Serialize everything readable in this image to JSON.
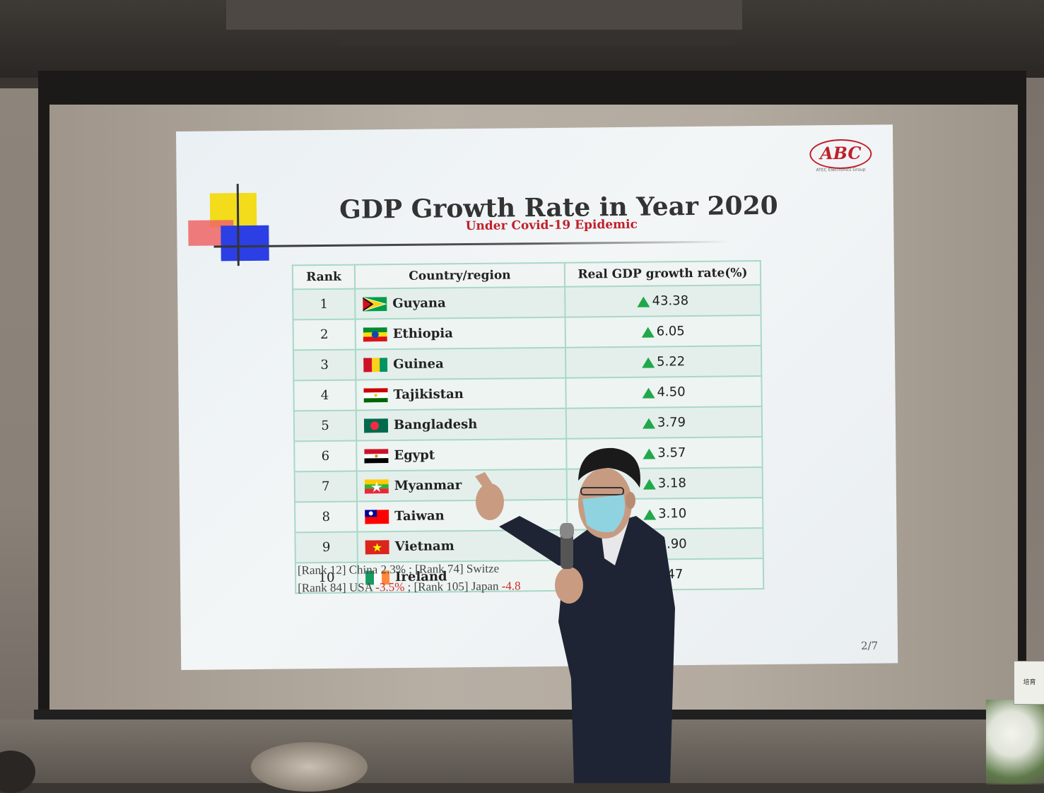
{
  "slide": {
    "title": "GDP Growth Rate in Year 2020",
    "subtitle": "Under Covid-19 Epidemic",
    "logo_text": "ABC",
    "logo_tagline": "ATEC Electronics Group",
    "page_number": "2/7"
  },
  "table": {
    "headers": [
      "Rank",
      "Country/region",
      "Real GDP growth rate(%)"
    ],
    "rows": [
      {
        "rank": "1",
        "country": "Guyana",
        "rate": "43.38"
      },
      {
        "rank": "2",
        "country": "Ethiopia",
        "rate": "6.05"
      },
      {
        "rank": "3",
        "country": "Guinea",
        "rate": "5.22"
      },
      {
        "rank": "4",
        "country": "Tajikistan",
        "rate": "4.50"
      },
      {
        "rank": "5",
        "country": "Bangladesh",
        "rate": "3.79"
      },
      {
        "rank": "6",
        "country": "Egypt",
        "rate": "3.57"
      },
      {
        "rank": "7",
        "country": "Myanmar",
        "rate": "3.18"
      },
      {
        "rank": "8",
        "country": "Taiwan",
        "rate": "3.10"
      },
      {
        "rank": "9",
        "country": "Vietnam",
        "rate": "2.90"
      },
      {
        "rank": "10",
        "country": "Ireland",
        "rate": ".47"
      }
    ]
  },
  "footnote": {
    "line1": "[Rank 12] China 2.3% ; [Rank   74] Switze",
    "line2_prefix": "[Rank 84] USA ",
    "line2_usa": "-3.5%",
    "line2_mid": " ; [Rank 105] Japan ",
    "line2_japan": "-4.8"
  },
  "room": {
    "stand_sign": "培育"
  },
  "colors": {
    "title": "#333333",
    "subtitle": "#c0202a",
    "table_border": "#a8d8c7",
    "up_arrow": "#20a84a",
    "negative": "#d02a2a"
  }
}
